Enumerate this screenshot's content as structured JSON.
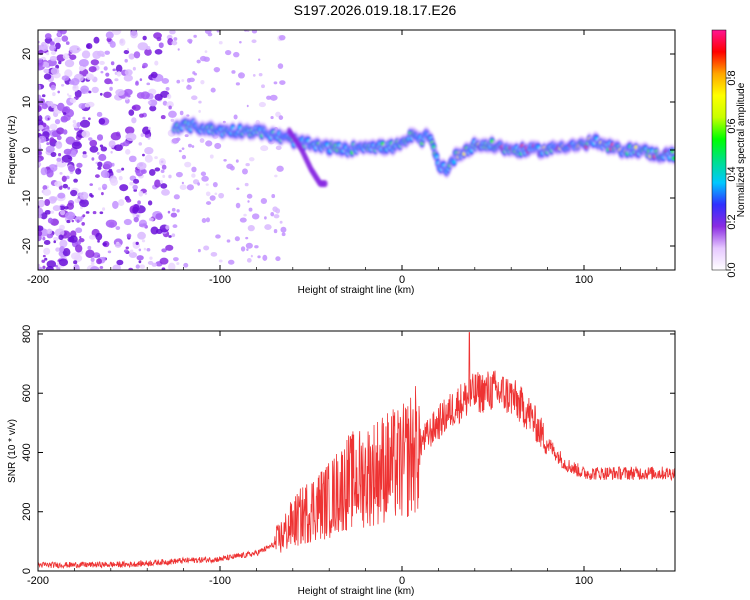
{
  "title": "S197.2026.019.18.17.E26",
  "chart_data": [
    {
      "type": "heatmap",
      "panel": "top",
      "xlabel": "Height of straight line (km)",
      "ylabel": "Frequency (Hz)",
      "xlim": [
        -200,
        150
      ],
      "ylim": [
        -25,
        25
      ],
      "xticks": [
        -200,
        -100,
        0,
        100
      ],
      "xtick_labels": [
        "-200",
        "-100",
        "0",
        "100"
      ],
      "yticks": [
        -20,
        -10,
        0,
        10,
        20
      ],
      "ytick_labels": [
        "-20",
        "-10",
        "0",
        "10",
        "20"
      ],
      "ridge": {
        "x": [
          -125,
          -115,
          -100,
          -90,
          -80,
          -70,
          -60,
          -50,
          -40,
          -30,
          -20,
          -10,
          0,
          5,
          10,
          15,
          20,
          25,
          30,
          40,
          50,
          60,
          70,
          80,
          90,
          100,
          105,
          110,
          120,
          130,
          140,
          150
        ],
        "y": [
          5,
          5,
          4,
          4,
          4,
          3,
          2,
          1,
          0.5,
          0,
          1,
          0.5,
          1,
          3,
          2,
          3,
          -3,
          -4,
          -1,
          1,
          1,
          0,
          0,
          0,
          1,
          1,
          2,
          1,
          0,
          0,
          -1,
          -1
        ]
      },
      "branch": {
        "x": [
          -62,
          -55,
          -50,
          -45,
          -42
        ],
        "y": [
          4,
          0,
          -4,
          -7,
          -7
        ]
      },
      "colorbar": {
        "label": "Normalized spectral amplitude",
        "range": [
          0,
          1
        ],
        "ticks": [
          0.0,
          0.2,
          0.4,
          0.6,
          0.8
        ],
        "tick_labels": [
          "0.0",
          "0.2",
          "0.4",
          "0.6",
          "0.8"
        ],
        "colors": [
          "#ffffff",
          "#e6c8ff",
          "#8a2be2",
          "#3030ff",
          "#00c8ff",
          "#00e08a",
          "#00ff00",
          "#c8ff00",
          "#ffff00",
          "#ffa500",
          "#ff0000",
          "#ff1493"
        ]
      }
    },
    {
      "type": "line",
      "panel": "bottom",
      "xlabel": "Height of straight line (km)",
      "ylabel": "SNR (10 * v/v)",
      "xlim": [
        -200,
        150
      ],
      "ylim": [
        0,
        810
      ],
      "xticks": [
        -200,
        -100,
        0,
        100
      ],
      "xtick_labels": [
        "-200",
        "-100",
        "0",
        "100"
      ],
      "yticks": [
        0,
        200,
        400,
        600,
        800
      ],
      "ytick_labels": [
        "0",
        "200",
        "400",
        "600",
        "800"
      ],
      "color": "#ee3333",
      "envelope": {
        "x": [
          -200,
          -150,
          -120,
          -100,
          -80,
          -70,
          -60,
          -50,
          -40,
          -30,
          -20,
          -10,
          0,
          10,
          20,
          30,
          40,
          50,
          60,
          70,
          80,
          90,
          100,
          110,
          120,
          130,
          140,
          150
        ],
        "y": [
          20,
          22,
          35,
          40,
          60,
          90,
          160,
          210,
          240,
          300,
          320,
          350,
          360,
          430,
          500,
          560,
          600,
          610,
          590,
          530,
          430,
          360,
          330,
          330,
          330,
          330,
          330,
          330
        ]
      },
      "spike": {
        "x": 37,
        "y": 805
      }
    }
  ]
}
